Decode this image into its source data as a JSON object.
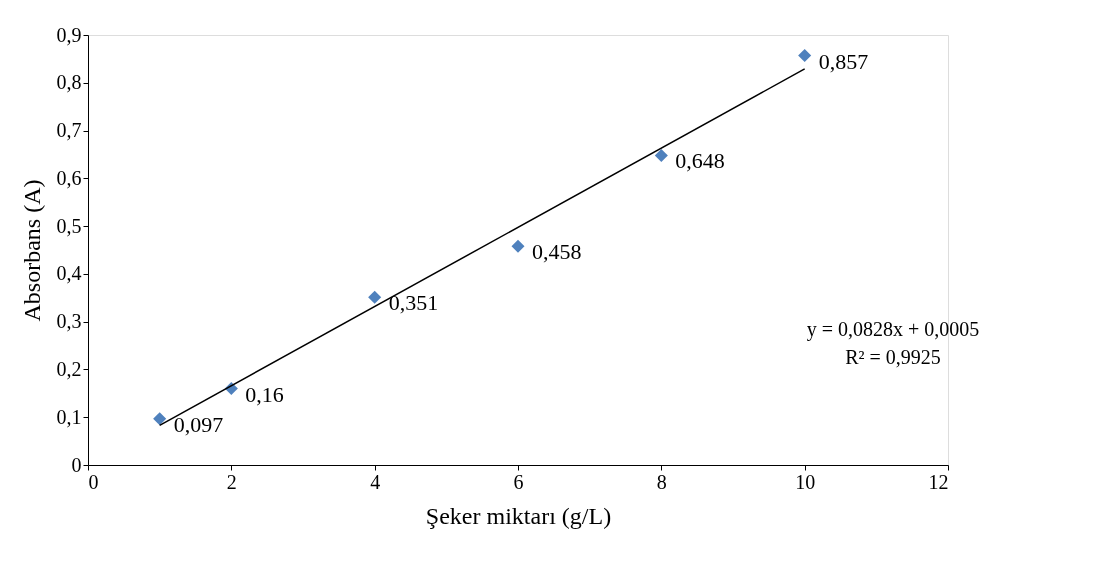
{
  "chart_data": {
    "type": "scatter",
    "xlabel": "Şeker miktarı (g/L)",
    "ylabel": "Absorbans (A)",
    "x": [
      1,
      2,
      4,
      6,
      8,
      10
    ],
    "series": [
      {
        "marker": "diamond",
        "color": "#4f81bd",
        "values": [
          0.097,
          0.16,
          0.351,
          0.458,
          0.648,
          0.857
        ],
        "value_labels": [
          "0,097",
          "0,16",
          "0,351",
          "0,458",
          "0,648",
          "0,857"
        ]
      },
      {
        "type": "line",
        "marker": "none",
        "color": "#000000",
        "x": [
          1,
          10
        ],
        "values": [
          0.083,
          0.829
        ]
      }
    ],
    "xlim": [
      0,
      12
    ],
    "xticks": [
      0,
      2,
      4,
      6,
      8,
      10,
      12
    ],
    "ylim": [
      0,
      0.9
    ],
    "yticks": [
      0,
      {
        "value": 0.1,
        "label": "0,1"
      },
      {
        "value": 0.2,
        "label": "0,2"
      },
      {
        "value": 0.3,
        "label": "0,3"
      },
      {
        "value": 0.4,
        "label": "0,4"
      },
      {
        "value": 0.5,
        "label": "0,5"
      },
      {
        "value": 0.6,
        "label": "0,6"
      },
      {
        "value": 0.7,
        "label": "0,7"
      },
      {
        "value": 0.8,
        "label": "0,8"
      },
      {
        "value": 0.9,
        "label": "0,9"
      }
    ],
    "grid": false,
    "annotations": [
      "y = 0,0828x + 0,0005",
      "R² = 0,9925"
    ]
  }
}
